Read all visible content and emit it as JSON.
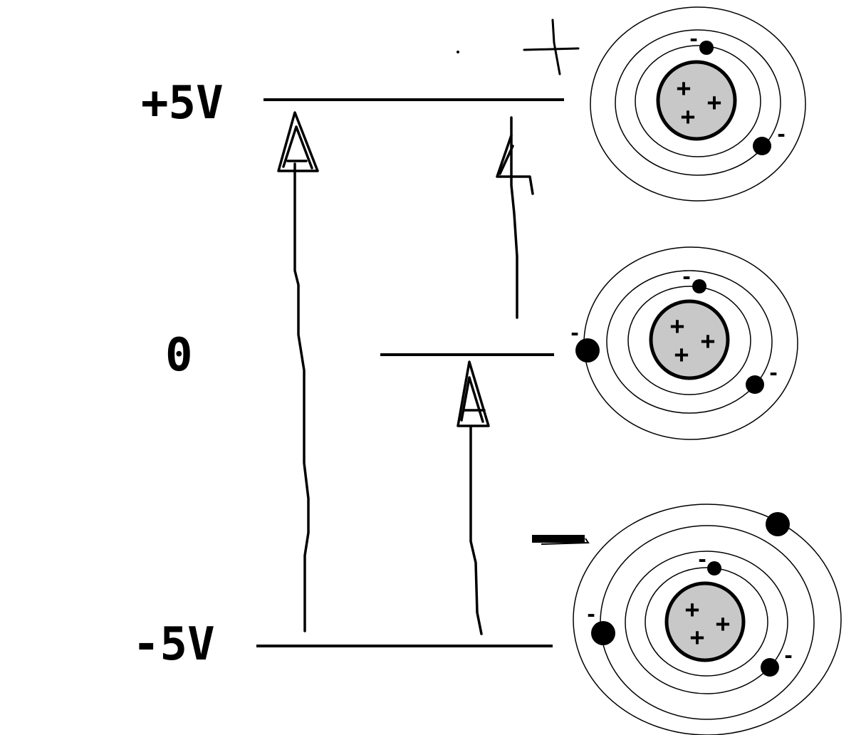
{
  "levels": {
    "top_label": "+5V",
    "middle_label": "0",
    "bottom_label": "-5V"
  },
  "symbols": {
    "plus": "+",
    "minus": "-"
  },
  "colors": {
    "ink": "#000000",
    "nucleus": "#c8c8c8",
    "background": "#ffffff"
  },
  "atoms": [
    {
      "name": "positive-ion",
      "nucleus_charges": 3,
      "electrons": 2
    },
    {
      "name": "neutral-atom",
      "nucleus_charges": 3,
      "electrons": 3
    },
    {
      "name": "negative-ion",
      "nucleus_charges": 3,
      "electrons": 4
    }
  ]
}
